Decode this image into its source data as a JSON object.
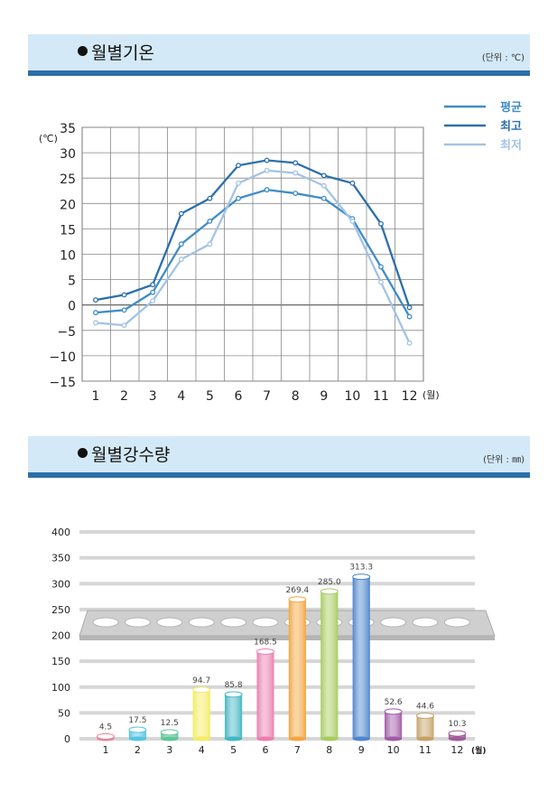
{
  "temperature": {
    "header_title": "월별기온",
    "unit": "(단위 : ℃)",
    "chart_data": {
      "type": "line",
      "ylabel": "(℃)",
      "x_unit": "(월)",
      "categories": [
        "1",
        "2",
        "3",
        "4",
        "5",
        "6",
        "7",
        "8",
        "9",
        "10",
        "11",
        "12"
      ],
      "y_ticks": [
        35,
        30,
        25,
        20,
        15,
        10,
        5,
        0,
        -5,
        -10,
        -15
      ],
      "ylim": [
        -15,
        35
      ],
      "grid": true,
      "legend_position": "top-right",
      "series": [
        {
          "name": "평균",
          "color": "#3f8cc6",
          "values": [
            -1.5,
            -1,
            2.5,
            12,
            16.5,
            21,
            22.7,
            22,
            21,
            17,
            7.5,
            -2.3
          ]
        },
        {
          "name": "최고",
          "color": "#2c6fad",
          "values": [
            1,
            2,
            4,
            18,
            21,
            27.5,
            28.5,
            28,
            25.5,
            24,
            16,
            -0.5
          ]
        },
        {
          "name": "최저",
          "color": "#a3c3e4",
          "values": [
            -3.5,
            -4,
            0.8,
            9,
            12,
            24,
            26.5,
            26,
            23.5,
            16.5,
            4.5,
            -7.5
          ]
        }
      ]
    }
  },
  "precipitation": {
    "header_title": "월별강수량",
    "unit": "(단위 : ㎜)",
    "chart_data": {
      "type": "bar",
      "x_unit": "(월)",
      "categories": [
        "1",
        "2",
        "3",
        "4",
        "5",
        "6",
        "7",
        "8",
        "9",
        "10",
        "11",
        "12"
      ],
      "values": [
        4.5,
        17.5,
        12.5,
        94.7,
        85.8,
        168.5,
        269.4,
        285.0,
        313.3,
        52.6,
        44.6,
        10.3
      ],
      "value_labels": [
        "4.5",
        "17.5",
        "12.5",
        "94.7",
        "85.8",
        "168.5",
        "269.4",
        "285.0",
        "313.3",
        "52.6",
        "44.6",
        "10.3"
      ],
      "y_ticks": [
        400,
        350,
        300,
        250,
        200,
        150,
        100,
        50,
        0
      ],
      "ylim": [
        0,
        400
      ],
      "colors": [
        "#ec7f97",
        "#55c6e0",
        "#5ec69a",
        "#f4ec62",
        "#42b6c5",
        "#ec7db0",
        "#f4a640",
        "#a6cc5e",
        "#4d86cc",
        "#a25aa8",
        "#c6a266",
        "#a05c98"
      ]
    }
  }
}
